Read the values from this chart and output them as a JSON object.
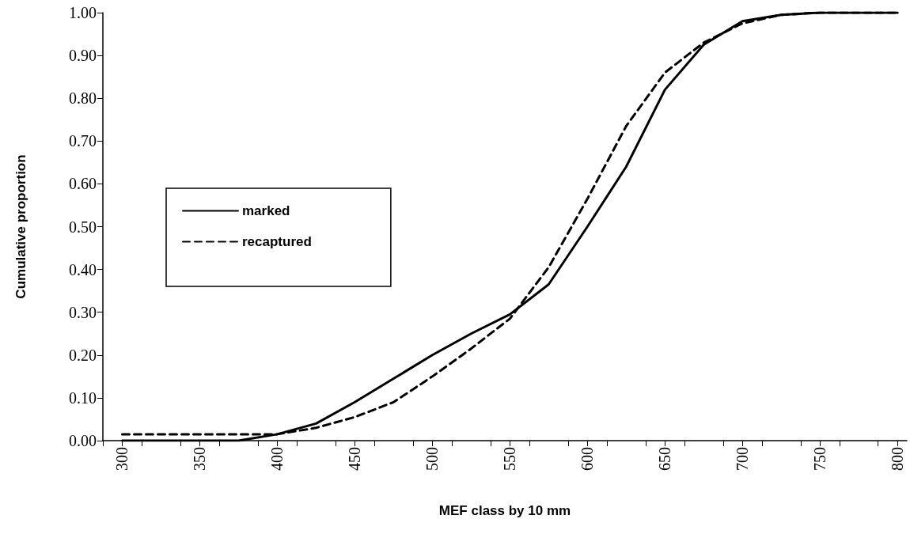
{
  "chart_data": {
    "type": "line",
    "xlabel": "MEF class by 10 mm",
    "ylabel": "Cumulative proportion",
    "x": [
      300,
      325,
      350,
      375,
      400,
      425,
      450,
      475,
      500,
      525,
      550,
      575,
      600,
      625,
      650,
      675,
      700,
      725,
      750,
      775,
      800
    ],
    "series": [
      {
        "name": "marked",
        "color": "#000000",
        "line_style": "solid",
        "values": [
          0,
          0,
          0,
          0,
          0.015,
          0.04,
          0.09,
          0.145,
          0.2,
          0.25,
          0.295,
          0.365,
          0.5,
          0.64,
          0.82,
          0.925,
          0.98,
          0.995,
          1,
          1,
          1
        ]
      },
      {
        "name": "recaptured",
        "color": "#000000",
        "line_style": "dashed",
        "values": [
          0.015,
          0.015,
          0.015,
          0.015,
          0.015,
          0.03,
          0.055,
          0.09,
          0.15,
          0.215,
          0.285,
          0.405,
          0.565,
          0.735,
          0.86,
          0.93,
          0.975,
          0.995,
          1,
          1,
          1
        ]
      }
    ],
    "xlim": [
      287.5,
      806
    ],
    "xticks": [
      {
        "value": 287.5,
        "label": null
      },
      300,
      {
        "value": 312.5,
        "label": null
      },
      350,
      {
        "value": 337.5,
        "label": null
      },
      {
        "value": 362.5,
        "label": null
      },
      {
        "value": 387.5,
        "label": null
      },
      400,
      {
        "value": 412.5,
        "label": null
      },
      {
        "value": 437.5,
        "label": null
      },
      450,
      {
        "value": 462.5,
        "label": null
      },
      {
        "value": 487.5,
        "label": null
      },
      500,
      {
        "value": 512.5,
        "label": null
      },
      {
        "value": 537.5,
        "label": null
      },
      550,
      {
        "value": 562.5,
        "label": null
      },
      {
        "value": 587.5,
        "label": null
      },
      600,
      {
        "value": 612.5,
        "label": null
      },
      {
        "value": 637.5,
        "label": null
      },
      650,
      {
        "value": 662.5,
        "label": null
      },
      {
        "value": 687.5,
        "label": null
      },
      700,
      {
        "value": 712.5,
        "label": null
      },
      {
        "value": 737.5,
        "label": null
      },
      750,
      {
        "value": 762.5,
        "label": null
      },
      {
        "value": 787.5,
        "label": null
      },
      800
    ],
    "ylim": [
      0,
      1
    ],
    "yticks": [
      {
        "value": 0,
        "label": "0.00"
      },
      {
        "value": 0.1,
        "label": "0.10"
      },
      {
        "value": 0.2,
        "label": "0.20"
      },
      {
        "value": 0.3,
        "label": "0.30"
      },
      {
        "value": 0.4,
        "label": "0.40"
      },
      {
        "value": 0.5,
        "label": "0.50"
      },
      {
        "value": 0.6,
        "label": "0.60"
      },
      {
        "value": 0.7,
        "label": "0.70"
      },
      {
        "value": 0.8,
        "label": "0.80"
      },
      {
        "value": 0.9,
        "label": "0.90"
      },
      {
        "value": 1,
        "label": "1.00"
      }
    ],
    "grid": false,
    "legend": "left",
    "marker": "none"
  }
}
